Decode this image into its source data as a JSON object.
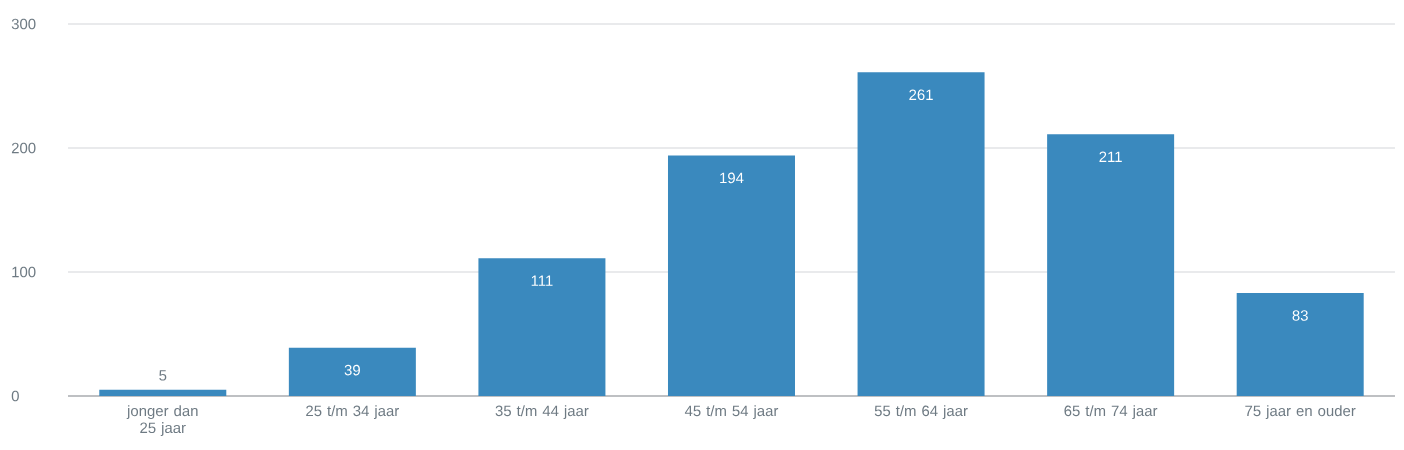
{
  "chart_data": {
    "type": "bar",
    "categories": [
      "jonger dan 25 jaar",
      "25 t/m 34 jaar",
      "35 t/m 44 jaar",
      "45 t/m 54 jaar",
      "55 t/m 64 jaar",
      "65 t/m 74 jaar",
      "75 jaar en ouder"
    ],
    "values": [
      5,
      39,
      111,
      194,
      261,
      211,
      83
    ],
    "color": "#3a89be",
    "ylim": [
      0,
      300
    ],
    "yticks": [
      0,
      100,
      200,
      300
    ],
    "grid": "y",
    "data_labels": true
  }
}
